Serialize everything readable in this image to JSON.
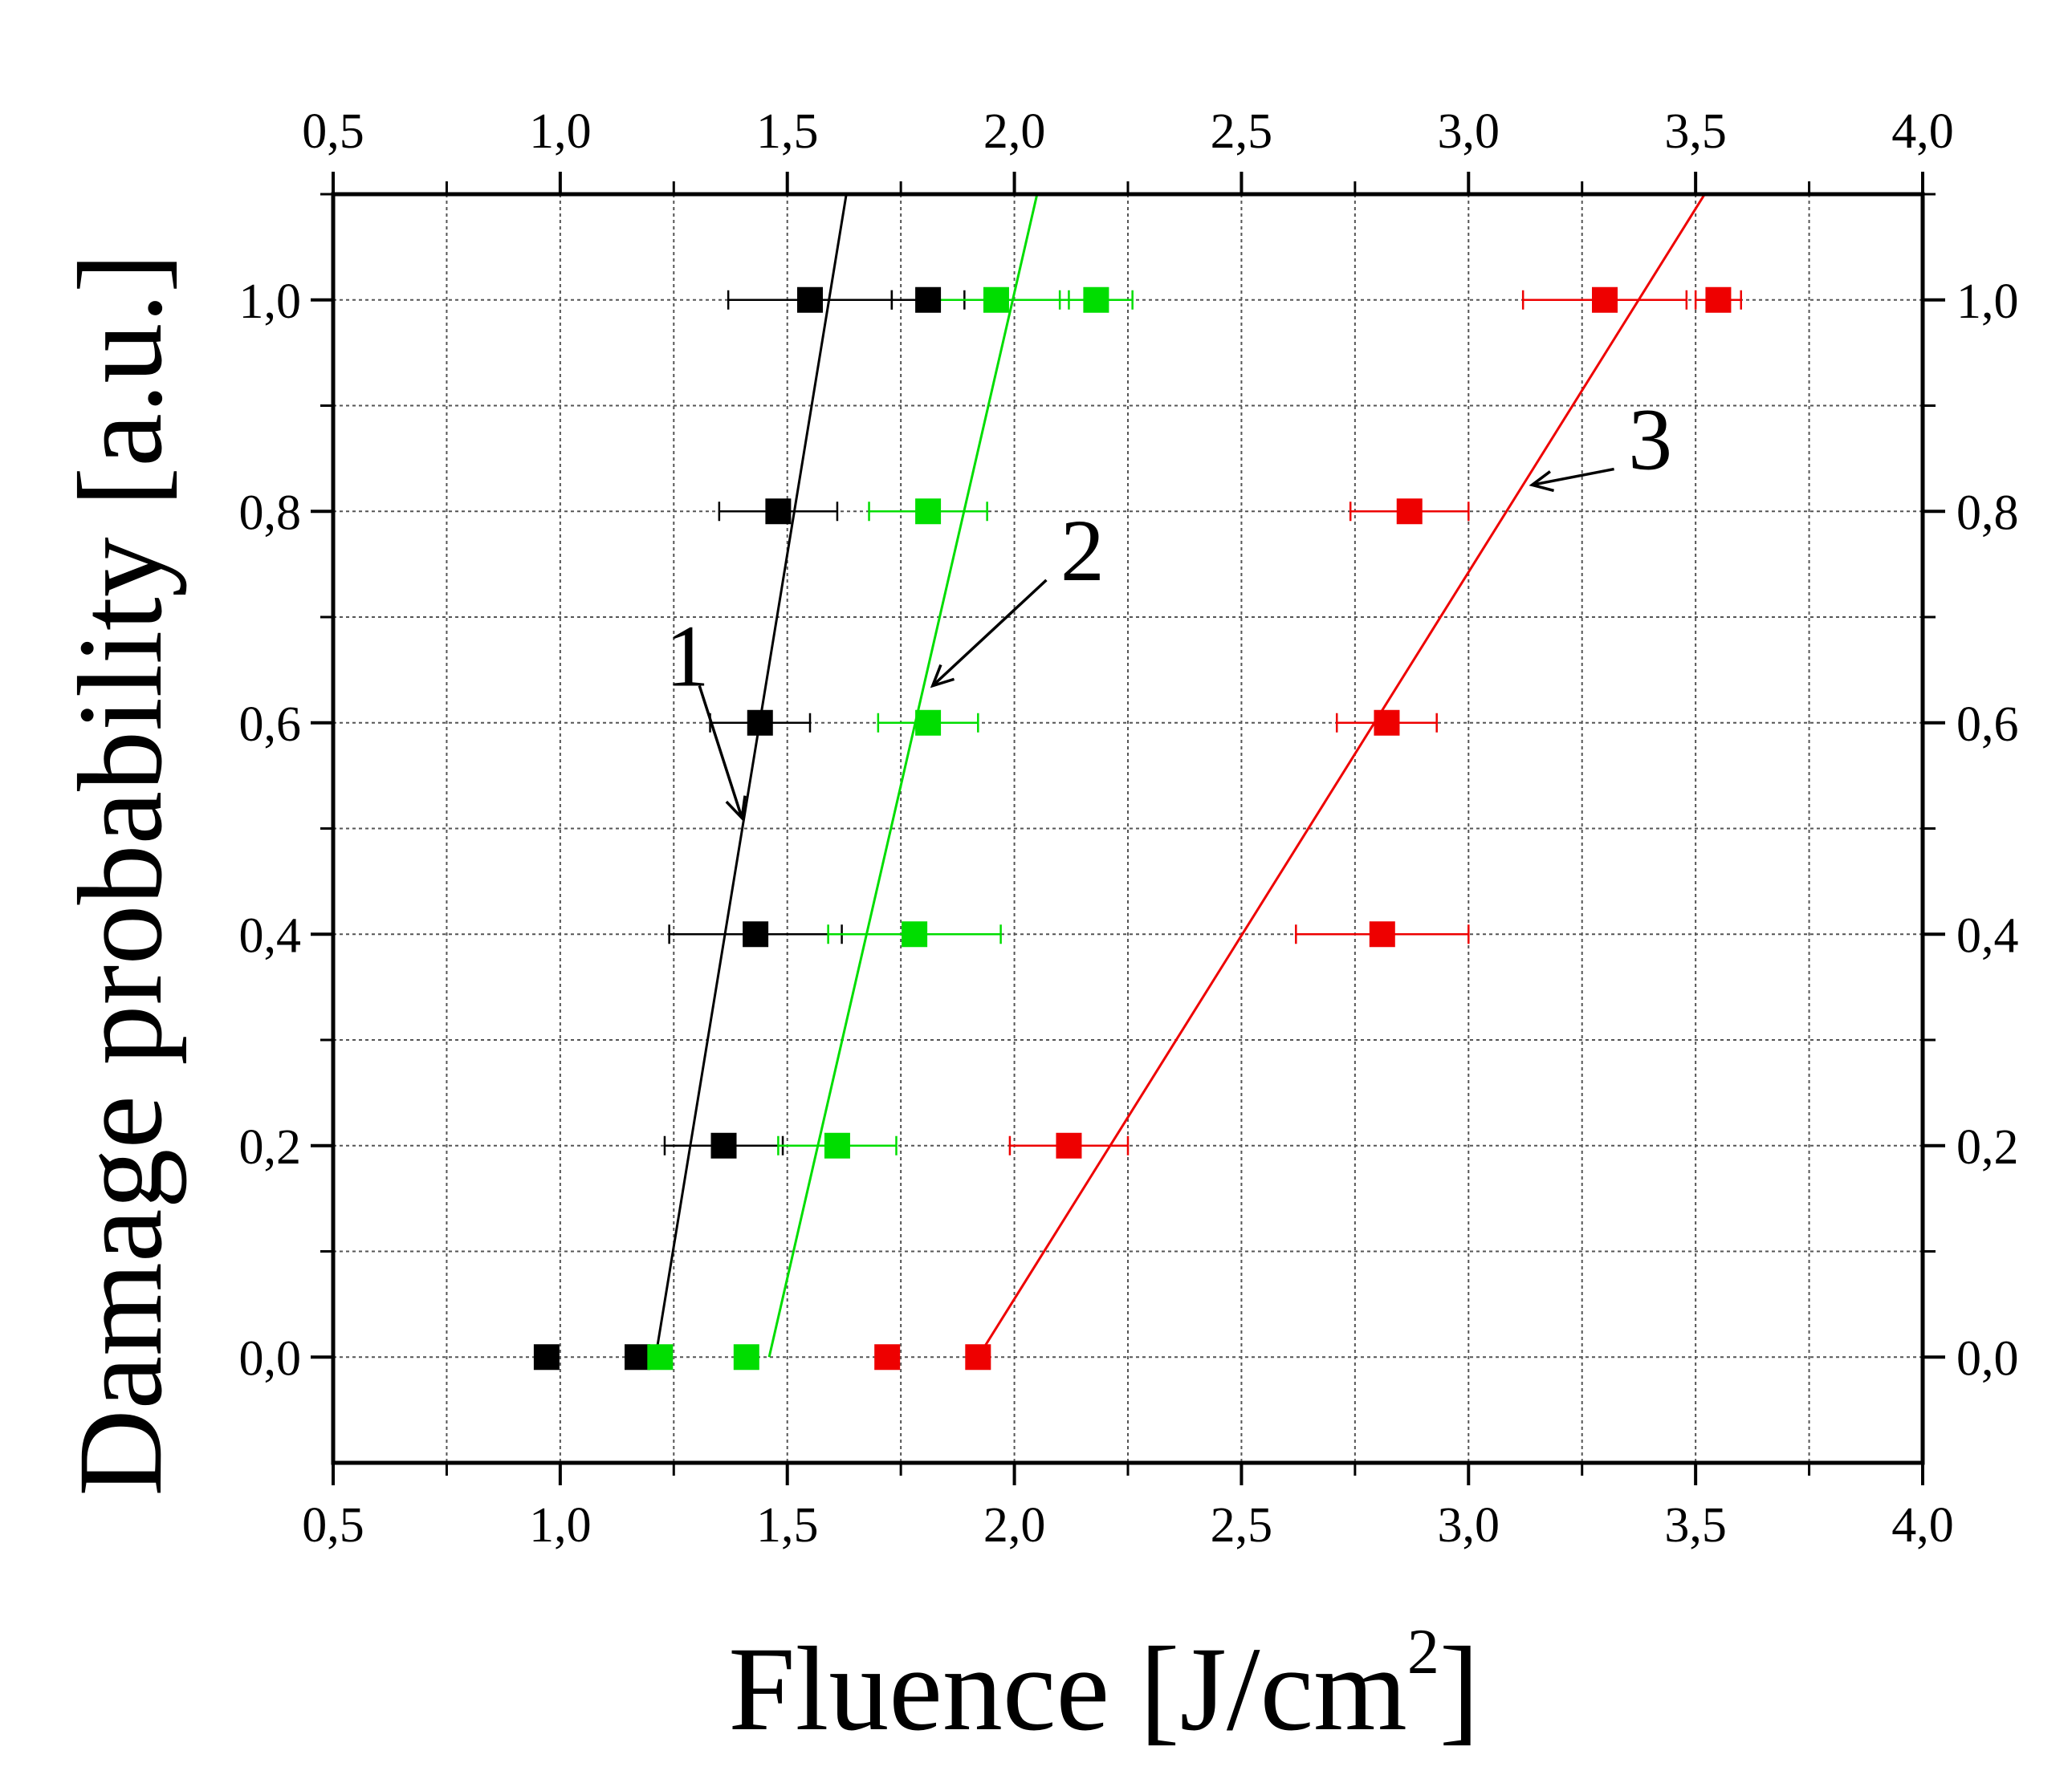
{
  "chart_data": {
    "type": "scatter",
    "xlabel": "Fluence [J/cm",
    "xlabel_superscript": "2",
    "xlabel_close": "]",
    "ylabel": "Damage probability [a.u.]",
    "xlim": [
      0.5,
      4.0
    ],
    "ylim": [
      -0.1,
      1.1
    ],
    "grid": true,
    "x_ticks": [
      "0,5",
      "1,0",
      "1,5",
      "2,0",
      "2,5",
      "3,0",
      "3,5",
      "4,0"
    ],
    "y_ticks": [
      "0,0",
      "0,2",
      "0,4",
      "0,6",
      "0,8",
      "1,0"
    ],
    "series": [
      {
        "color": "#000000",
        "points": [
          {
            "x": 0.97,
            "y": 0.0,
            "xerr": 0
          },
          {
            "x": 1.17,
            "y": 0.0,
            "xerr": 0
          },
          {
            "x": 1.36,
            "y": 0.2,
            "xerr": 0.13
          },
          {
            "x": 1.43,
            "y": 0.4,
            "xerr": 0.19
          },
          {
            "x": 1.44,
            "y": 0.6,
            "xerr": 0.11
          },
          {
            "x": 1.48,
            "y": 0.8,
            "xerr": 0.13
          },
          {
            "x": 1.55,
            "y": 1.0,
            "xerr": 0.18
          },
          {
            "x": 1.81,
            "y": 1.0,
            "xerr": 0.08
          }
        ],
        "fit": {
          "x": [
            1.21,
            1.63
          ],
          "y": [
            0.0,
            1.1
          ]
        }
      },
      {
        "color": "#00dd00",
        "points": [
          {
            "x": 1.22,
            "y": 0.0,
            "xerr": 0
          },
          {
            "x": 1.41,
            "y": 0.0,
            "xerr": 0
          },
          {
            "x": 1.61,
            "y": 0.2,
            "xerr": 0.13
          },
          {
            "x": 1.78,
            "y": 0.4,
            "xerr": 0.19
          },
          {
            "x": 1.81,
            "y": 0.6,
            "xerr": 0.11
          },
          {
            "x": 1.81,
            "y": 0.8,
            "xerr": 0.13
          },
          {
            "x": 1.96,
            "y": 1.0,
            "xerr": 0.16
          },
          {
            "x": 2.18,
            "y": 1.0,
            "xerr": 0.08
          }
        ],
        "fit": {
          "x": [
            1.46,
            2.05
          ],
          "y": [
            0.0,
            1.1
          ]
        }
      },
      {
        "color": "#ee0000",
        "points": [
          {
            "x": 1.72,
            "y": 0.0,
            "xerr": 0
          },
          {
            "x": 1.92,
            "y": 0.0,
            "xerr": 0
          },
          {
            "x": 2.12,
            "y": 0.2,
            "xerr": 0.13
          },
          {
            "x": 2.81,
            "y": 0.4,
            "xerr": 0.19
          },
          {
            "x": 2.82,
            "y": 0.6,
            "xerr": 0.11
          },
          {
            "x": 2.87,
            "y": 0.8,
            "xerr": 0.13
          },
          {
            "x": 3.3,
            "y": 1.0,
            "xerr": 0.18
          },
          {
            "x": 3.55,
            "y": 1.0,
            "xerr": 0.05
          }
        ],
        "fit": {
          "x": [
            1.92,
            3.52
          ],
          "y": [
            0.0,
            1.1
          ]
        }
      }
    ],
    "annotations": [
      {
        "text": "1",
        "x": 1.28,
        "y": 0.635,
        "arrow_to": {
          "x": 1.4,
          "y": 0.51
        }
      },
      {
        "text": "2",
        "x": 2.15,
        "y": 0.735,
        "arrow_to": {
          "x": 1.82,
          "y": 0.635
        }
      },
      {
        "text": "3",
        "x": 3.4,
        "y": 0.84,
        "arrow_to": {
          "x": 3.14,
          "y": 0.825
        }
      }
    ]
  }
}
